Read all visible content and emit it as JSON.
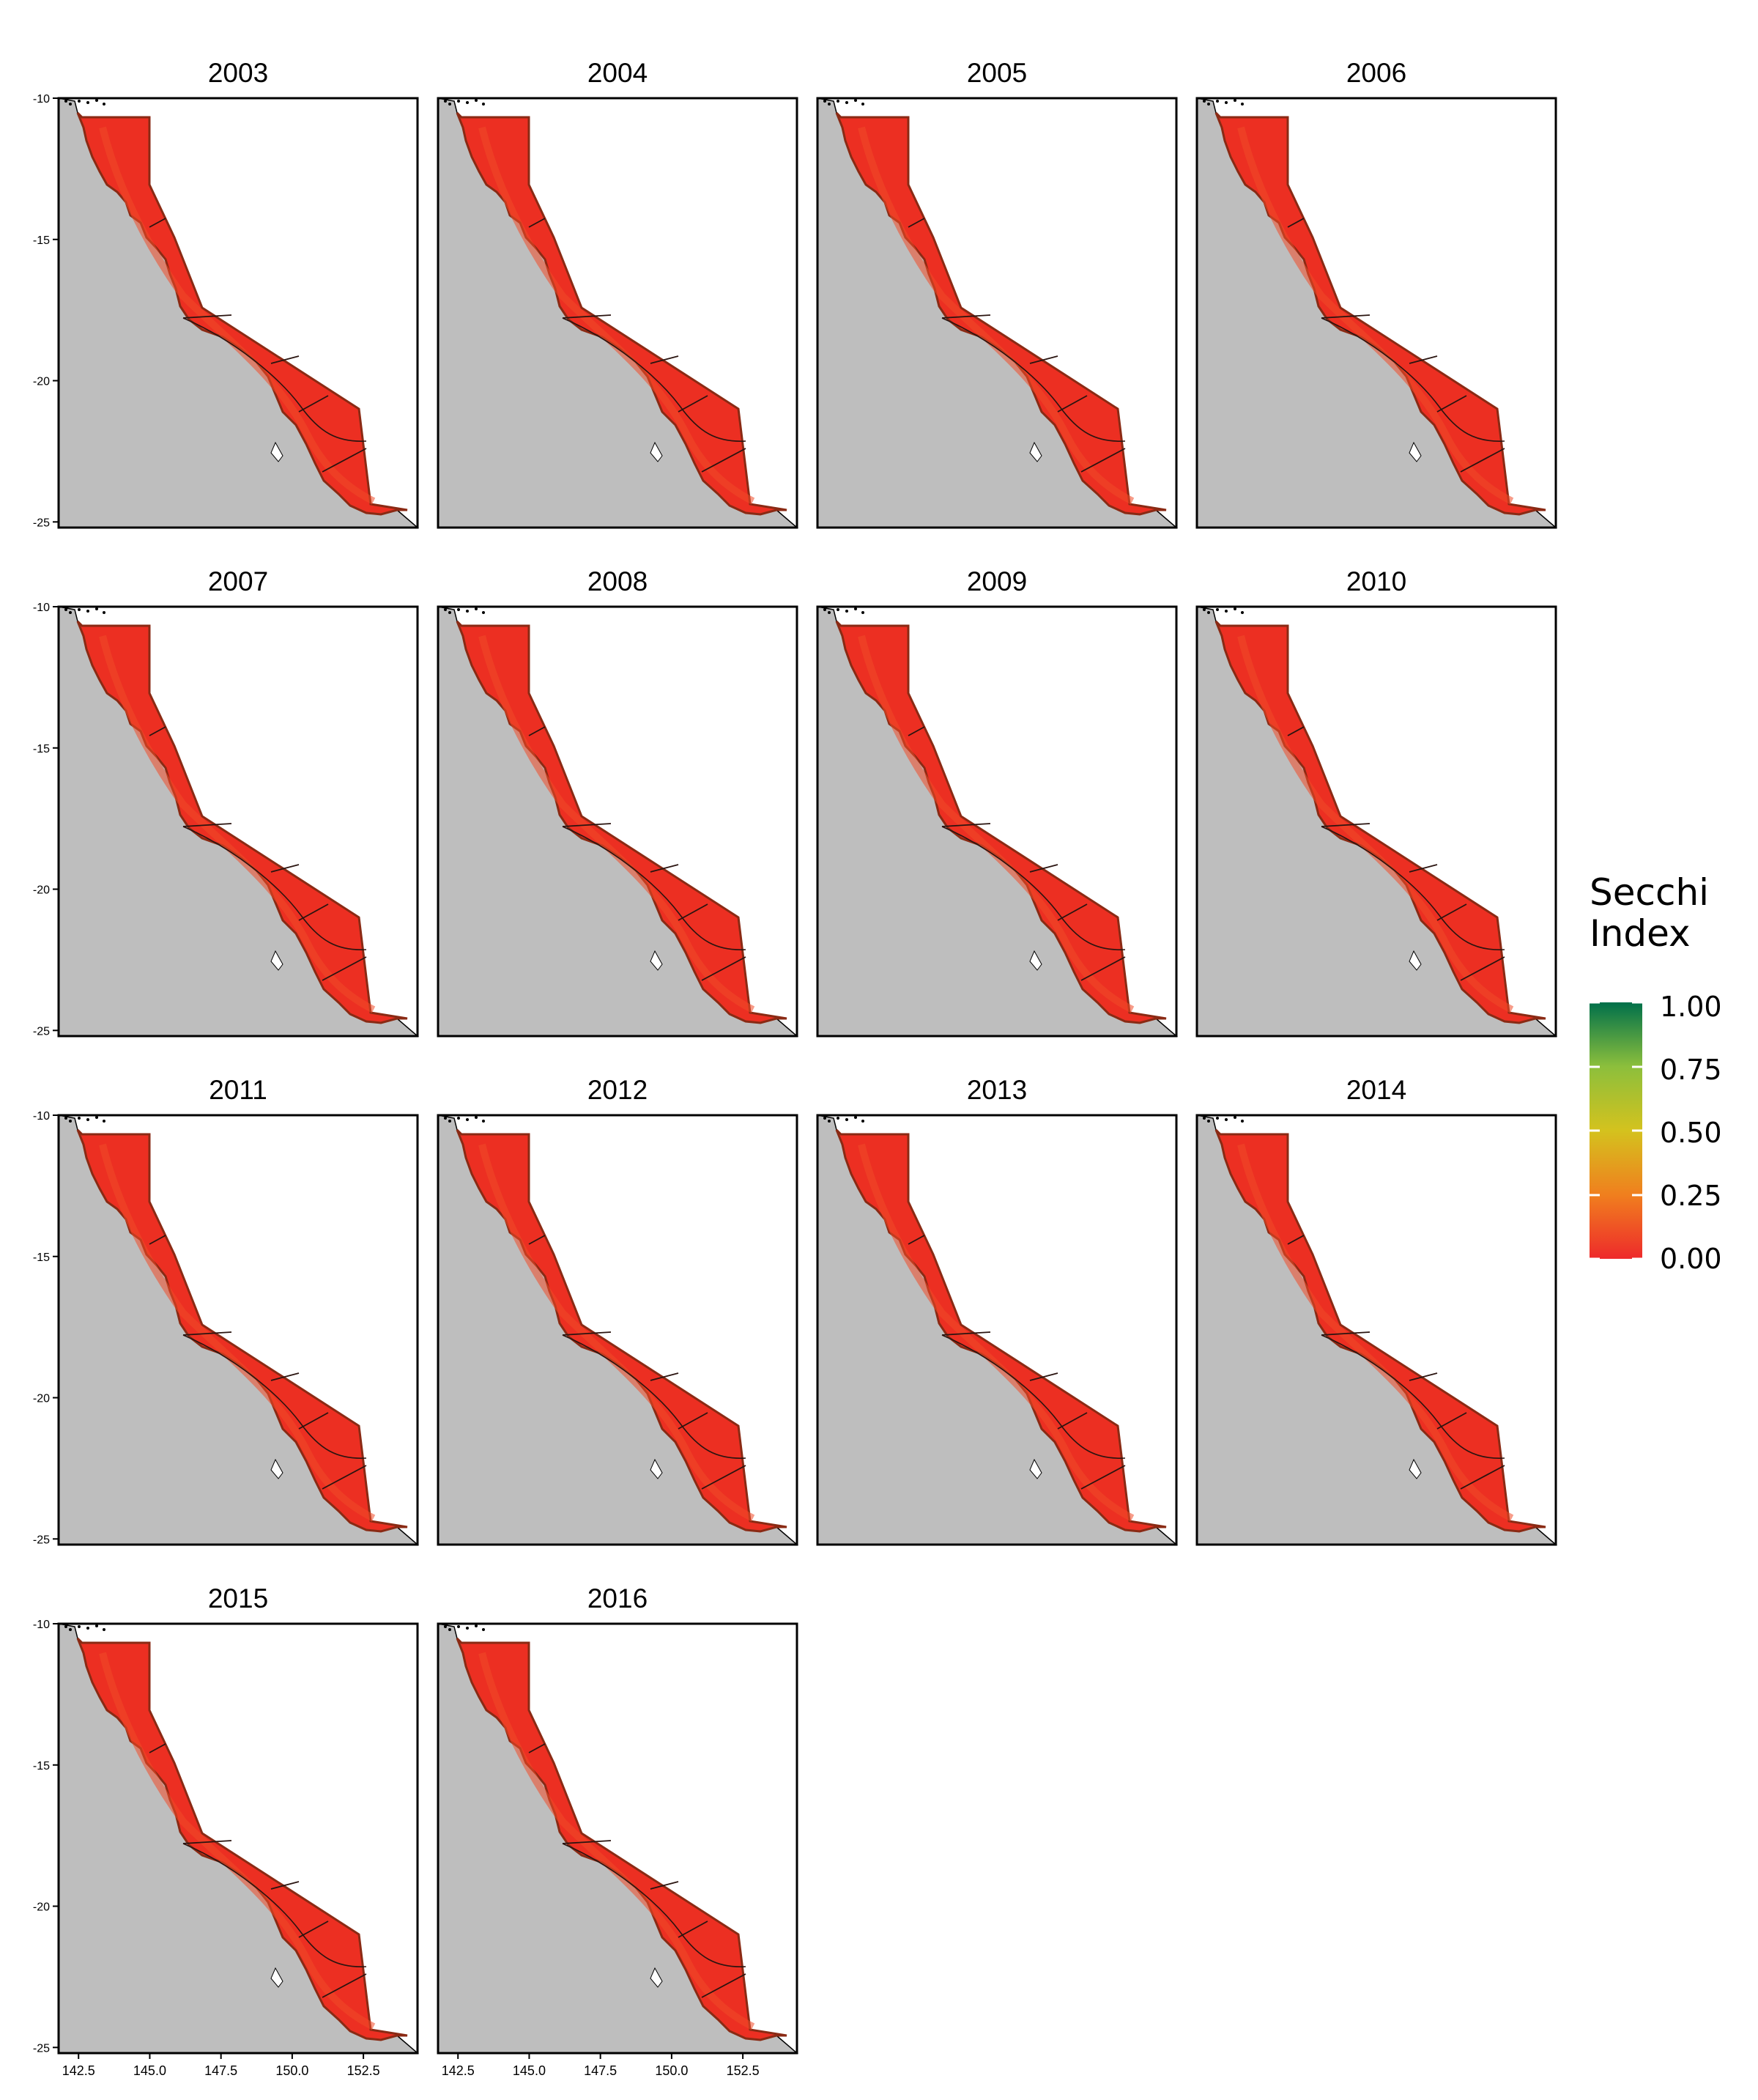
{
  "figure": {
    "legend": {
      "title_line1": "Secchi",
      "title_line2": "Index",
      "ticks": [
        "1.00",
        "0.75",
        "0.50",
        "0.25",
        "0.00"
      ],
      "tick_values": [
        1.0,
        0.75,
        0.5,
        0.25,
        0.0
      ],
      "colors": {
        "high": "#00704a",
        "upper": "#8cbf3c",
        "mid": "#d4c21e",
        "lower": "#f07f1e",
        "low": "#ee2a2b"
      }
    },
    "colors": {
      "land": "#bebebe",
      "ocean": "#ffffff",
      "region_fill": "#ec2f22",
      "region_fill_inner": "#f04a28",
      "region_outline": "#8a2a14",
      "panel_border": "#000000"
    },
    "axes": {
      "y_ticks": [
        "-10",
        "-15",
        "-20",
        "-25"
      ],
      "y_values": [
        -10,
        -15,
        -20,
        -25
      ],
      "x_ticks": [
        "142.5",
        "145.0",
        "147.5",
        "150.0",
        "152.5"
      ],
      "x_values": [
        142.5,
        145.0,
        147.5,
        150.0,
        152.5
      ],
      "lon_range": [
        141.8,
        154.4
      ],
      "lat_range": [
        -10,
        -25.2
      ]
    },
    "panels": [
      {
        "year": "2003"
      },
      {
        "year": "2004"
      },
      {
        "year": "2005"
      },
      {
        "year": "2006"
      },
      {
        "year": "2007"
      },
      {
        "year": "2008"
      },
      {
        "year": "2009"
      },
      {
        "year": "2010"
      },
      {
        "year": "2011"
      },
      {
        "year": "2012"
      },
      {
        "year": "2013"
      },
      {
        "year": "2014"
      },
      {
        "year": "2015"
      },
      {
        "year": "2016"
      }
    ]
  }
}
